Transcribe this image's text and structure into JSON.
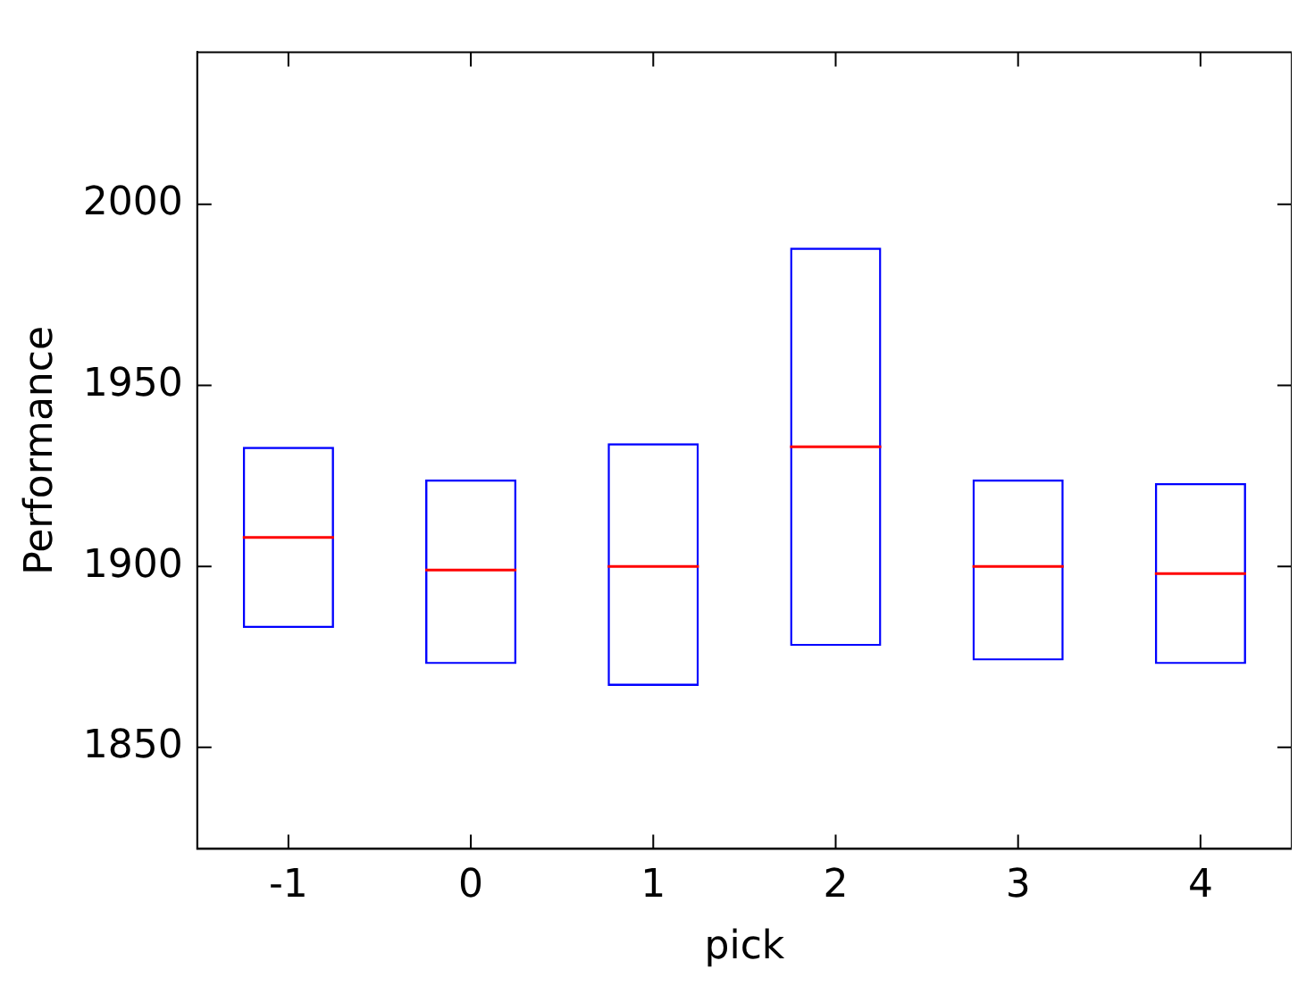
{
  "chart_data": {
    "type": "box",
    "categories": [
      "-1",
      "0",
      "1",
      "2",
      "3",
      "4"
    ],
    "xlabel": "pick",
    "ylabel": "Performance",
    "ylim": [
      1822,
      2042
    ],
    "yticks": [
      1850,
      1900,
      1950,
      2000
    ],
    "grid": false,
    "legend": false,
    "series": [
      {
        "color": "#0000ff",
        "boxes": [
          {
            "low": 1883,
            "q1": 1883,
            "median": 1908,
            "q3": 1933,
            "high": 1933
          },
          {
            "low": 1873,
            "q1": 1873,
            "median": 1899,
            "q3": 1924,
            "high": 1924
          },
          {
            "low": 1867,
            "q1": 1867,
            "median": 1900,
            "q3": 1934,
            "high": 1934
          },
          {
            "low": 1878,
            "q1": 1878,
            "median": 1933,
            "q3": 1988,
            "high": 1988
          },
          {
            "low": 1874,
            "q1": 1874,
            "median": 1900,
            "q3": 1924,
            "high": 1924
          },
          {
            "low": 1873,
            "q1": 1873,
            "median": 1898,
            "q3": 1923,
            "high": 1923
          }
        ]
      }
    ]
  }
}
